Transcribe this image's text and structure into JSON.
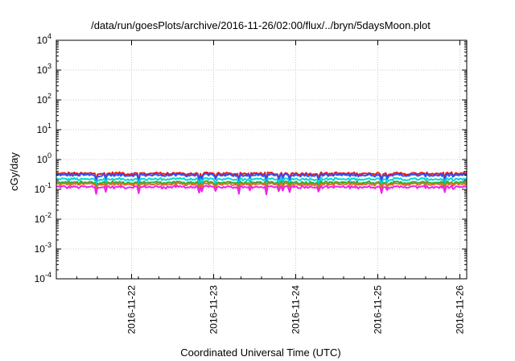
{
  "chart_data": {
    "type": "line",
    "title": "/data/run/goesPlots/archive/2016-11-26/02:00/flux/../bryn/5daysMoon.plot",
    "xlabel": "Coordinated Universal Time (UTC)",
    "ylabel": "cGy/day",
    "yscale": "log",
    "ylim": [
      0.0001,
      10000
    ],
    "y_ticks": [
      {
        "base": "10",
        "exp": "-4",
        "value": 0.0001
      },
      {
        "base": "10",
        "exp": "-3",
        "value": 0.001
      },
      {
        "base": "10",
        "exp": "-2",
        "value": 0.01
      },
      {
        "base": "10",
        "exp": "-1",
        "value": 0.1
      },
      {
        "base": "10",
        "exp": "0",
        "value": 1
      },
      {
        "base": "10",
        "exp": "1",
        "value": 10
      },
      {
        "base": "10",
        "exp": "2",
        "value": 100
      },
      {
        "base": "10",
        "exp": "3",
        "value": 1000
      },
      {
        "base": "10",
        "exp": "4",
        "value": 10000
      }
    ],
    "xlim": [
      "2016-11-21 02:00",
      "2016-11-26 02:00"
    ],
    "x_ticks": [
      "2016-11-22",
      "2016-11-23",
      "2016-11-24",
      "2016-11-25",
      "2016-11-26"
    ],
    "grid": true,
    "legend": "none",
    "series": [
      {
        "color": "#e41a1c",
        "level": 0.34
      },
      {
        "color": "#3050f8",
        "level": 0.3
      },
      {
        "color": "#00d8d8",
        "level": 0.22
      },
      {
        "color": "#33aa33",
        "level": 0.17
      },
      {
        "color": "#e07020",
        "level": 0.15
      },
      {
        "color": "#ee22ee",
        "level": 0.12
      }
    ]
  }
}
